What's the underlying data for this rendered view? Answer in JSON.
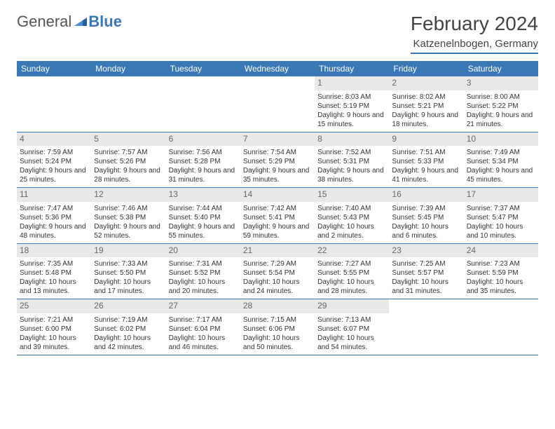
{
  "brand": {
    "name1": "General",
    "name2": "Blue"
  },
  "title": "February 2024",
  "location": "Katzenelnbogen, Germany",
  "colors": {
    "header_bg": "#3a78b5",
    "header_text": "#ffffff",
    "daynum_bg": "#e8e8e8",
    "daynum_text": "#666666",
    "border": "#3a78b5",
    "body_text": "#333333"
  },
  "day_headers": [
    "Sunday",
    "Monday",
    "Tuesday",
    "Wednesday",
    "Thursday",
    "Friday",
    "Saturday"
  ],
  "weeks": [
    [
      null,
      null,
      null,
      null,
      {
        "d": "1",
        "sr": "8:03 AM",
        "ss": "5:19 PM",
        "dl": "9 hours and 15 minutes."
      },
      {
        "d": "2",
        "sr": "8:02 AM",
        "ss": "5:21 PM",
        "dl": "9 hours and 18 minutes."
      },
      {
        "d": "3",
        "sr": "8:00 AM",
        "ss": "5:22 PM",
        "dl": "9 hours and 21 minutes."
      }
    ],
    [
      {
        "d": "4",
        "sr": "7:59 AM",
        "ss": "5:24 PM",
        "dl": "9 hours and 25 minutes."
      },
      {
        "d": "5",
        "sr": "7:57 AM",
        "ss": "5:26 PM",
        "dl": "9 hours and 28 minutes."
      },
      {
        "d": "6",
        "sr": "7:56 AM",
        "ss": "5:28 PM",
        "dl": "9 hours and 31 minutes."
      },
      {
        "d": "7",
        "sr": "7:54 AM",
        "ss": "5:29 PM",
        "dl": "9 hours and 35 minutes."
      },
      {
        "d": "8",
        "sr": "7:52 AM",
        "ss": "5:31 PM",
        "dl": "9 hours and 38 minutes."
      },
      {
        "d": "9",
        "sr": "7:51 AM",
        "ss": "5:33 PM",
        "dl": "9 hours and 41 minutes."
      },
      {
        "d": "10",
        "sr": "7:49 AM",
        "ss": "5:34 PM",
        "dl": "9 hours and 45 minutes."
      }
    ],
    [
      {
        "d": "11",
        "sr": "7:47 AM",
        "ss": "5:36 PM",
        "dl": "9 hours and 48 minutes."
      },
      {
        "d": "12",
        "sr": "7:46 AM",
        "ss": "5:38 PM",
        "dl": "9 hours and 52 minutes."
      },
      {
        "d": "13",
        "sr": "7:44 AM",
        "ss": "5:40 PM",
        "dl": "9 hours and 55 minutes."
      },
      {
        "d": "14",
        "sr": "7:42 AM",
        "ss": "5:41 PM",
        "dl": "9 hours and 59 minutes."
      },
      {
        "d": "15",
        "sr": "7:40 AM",
        "ss": "5:43 PM",
        "dl": "10 hours and 2 minutes."
      },
      {
        "d": "16",
        "sr": "7:39 AM",
        "ss": "5:45 PM",
        "dl": "10 hours and 6 minutes."
      },
      {
        "d": "17",
        "sr": "7:37 AM",
        "ss": "5:47 PM",
        "dl": "10 hours and 10 minutes."
      }
    ],
    [
      {
        "d": "18",
        "sr": "7:35 AM",
        "ss": "5:48 PM",
        "dl": "10 hours and 13 minutes."
      },
      {
        "d": "19",
        "sr": "7:33 AM",
        "ss": "5:50 PM",
        "dl": "10 hours and 17 minutes."
      },
      {
        "d": "20",
        "sr": "7:31 AM",
        "ss": "5:52 PM",
        "dl": "10 hours and 20 minutes."
      },
      {
        "d": "21",
        "sr": "7:29 AM",
        "ss": "5:54 PM",
        "dl": "10 hours and 24 minutes."
      },
      {
        "d": "22",
        "sr": "7:27 AM",
        "ss": "5:55 PM",
        "dl": "10 hours and 28 minutes."
      },
      {
        "d": "23",
        "sr": "7:25 AM",
        "ss": "5:57 PM",
        "dl": "10 hours and 31 minutes."
      },
      {
        "d": "24",
        "sr": "7:23 AM",
        "ss": "5:59 PM",
        "dl": "10 hours and 35 minutes."
      }
    ],
    [
      {
        "d": "25",
        "sr": "7:21 AM",
        "ss": "6:00 PM",
        "dl": "10 hours and 39 minutes."
      },
      {
        "d": "26",
        "sr": "7:19 AM",
        "ss": "6:02 PM",
        "dl": "10 hours and 42 minutes."
      },
      {
        "d": "27",
        "sr": "7:17 AM",
        "ss": "6:04 PM",
        "dl": "10 hours and 46 minutes."
      },
      {
        "d": "28",
        "sr": "7:15 AM",
        "ss": "6:06 PM",
        "dl": "10 hours and 50 minutes."
      },
      {
        "d": "29",
        "sr": "7:13 AM",
        "ss": "6:07 PM",
        "dl": "10 hours and 54 minutes."
      },
      null,
      null
    ]
  ],
  "labels": {
    "sunrise": "Sunrise:",
    "sunset": "Sunset:",
    "daylight": "Daylight:"
  }
}
